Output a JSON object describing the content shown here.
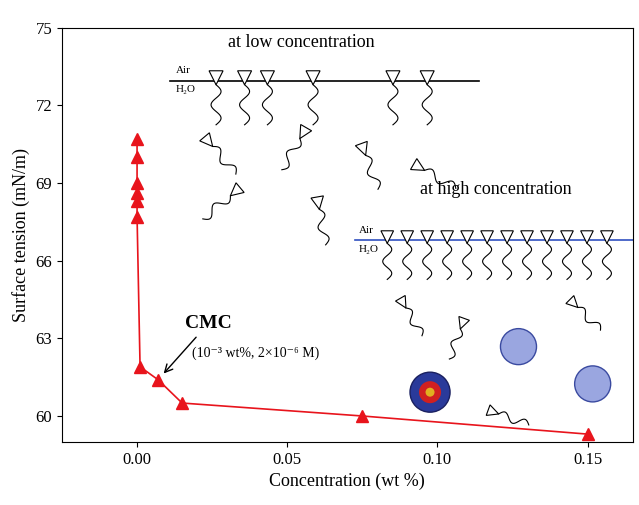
{
  "chart_data": {
    "type": "line",
    "x_label": "Concentration (wt %)",
    "y_label": "Surface tension (mN/m)",
    "x": [
      0,
      0,
      0,
      0,
      0,
      0,
      0.001,
      0.007,
      0.015,
      0.075,
      0.15
    ],
    "values": [
      70.7,
      70.0,
      69.0,
      68.6,
      68.3,
      67.7,
      61.9,
      61.4,
      60.5,
      60.0,
      59.3
    ],
    "color": "#e8141c",
    "marker": "triangle",
    "line_style": "solid",
    "xlim": [
      -0.025,
      0.165
    ],
    "ylim": [
      59.0,
      75
    ],
    "xticks": [
      {
        "value": 0,
        "label": "0.00"
      },
      {
        "value": 0.05,
        "label": "0.05"
      },
      {
        "value": 0.1,
        "label": "0.10"
      },
      {
        "value": 0.15,
        "label": "0.15"
      }
    ],
    "yticks": [
      60,
      63,
      66,
      69,
      72,
      75
    ],
    "annotations": [
      "at low concentration",
      "at high concentration",
      "CMC",
      "(10⁻³ wt%, 2×10⁻⁶ M)",
      "Air",
      "H₂O"
    ]
  }
}
